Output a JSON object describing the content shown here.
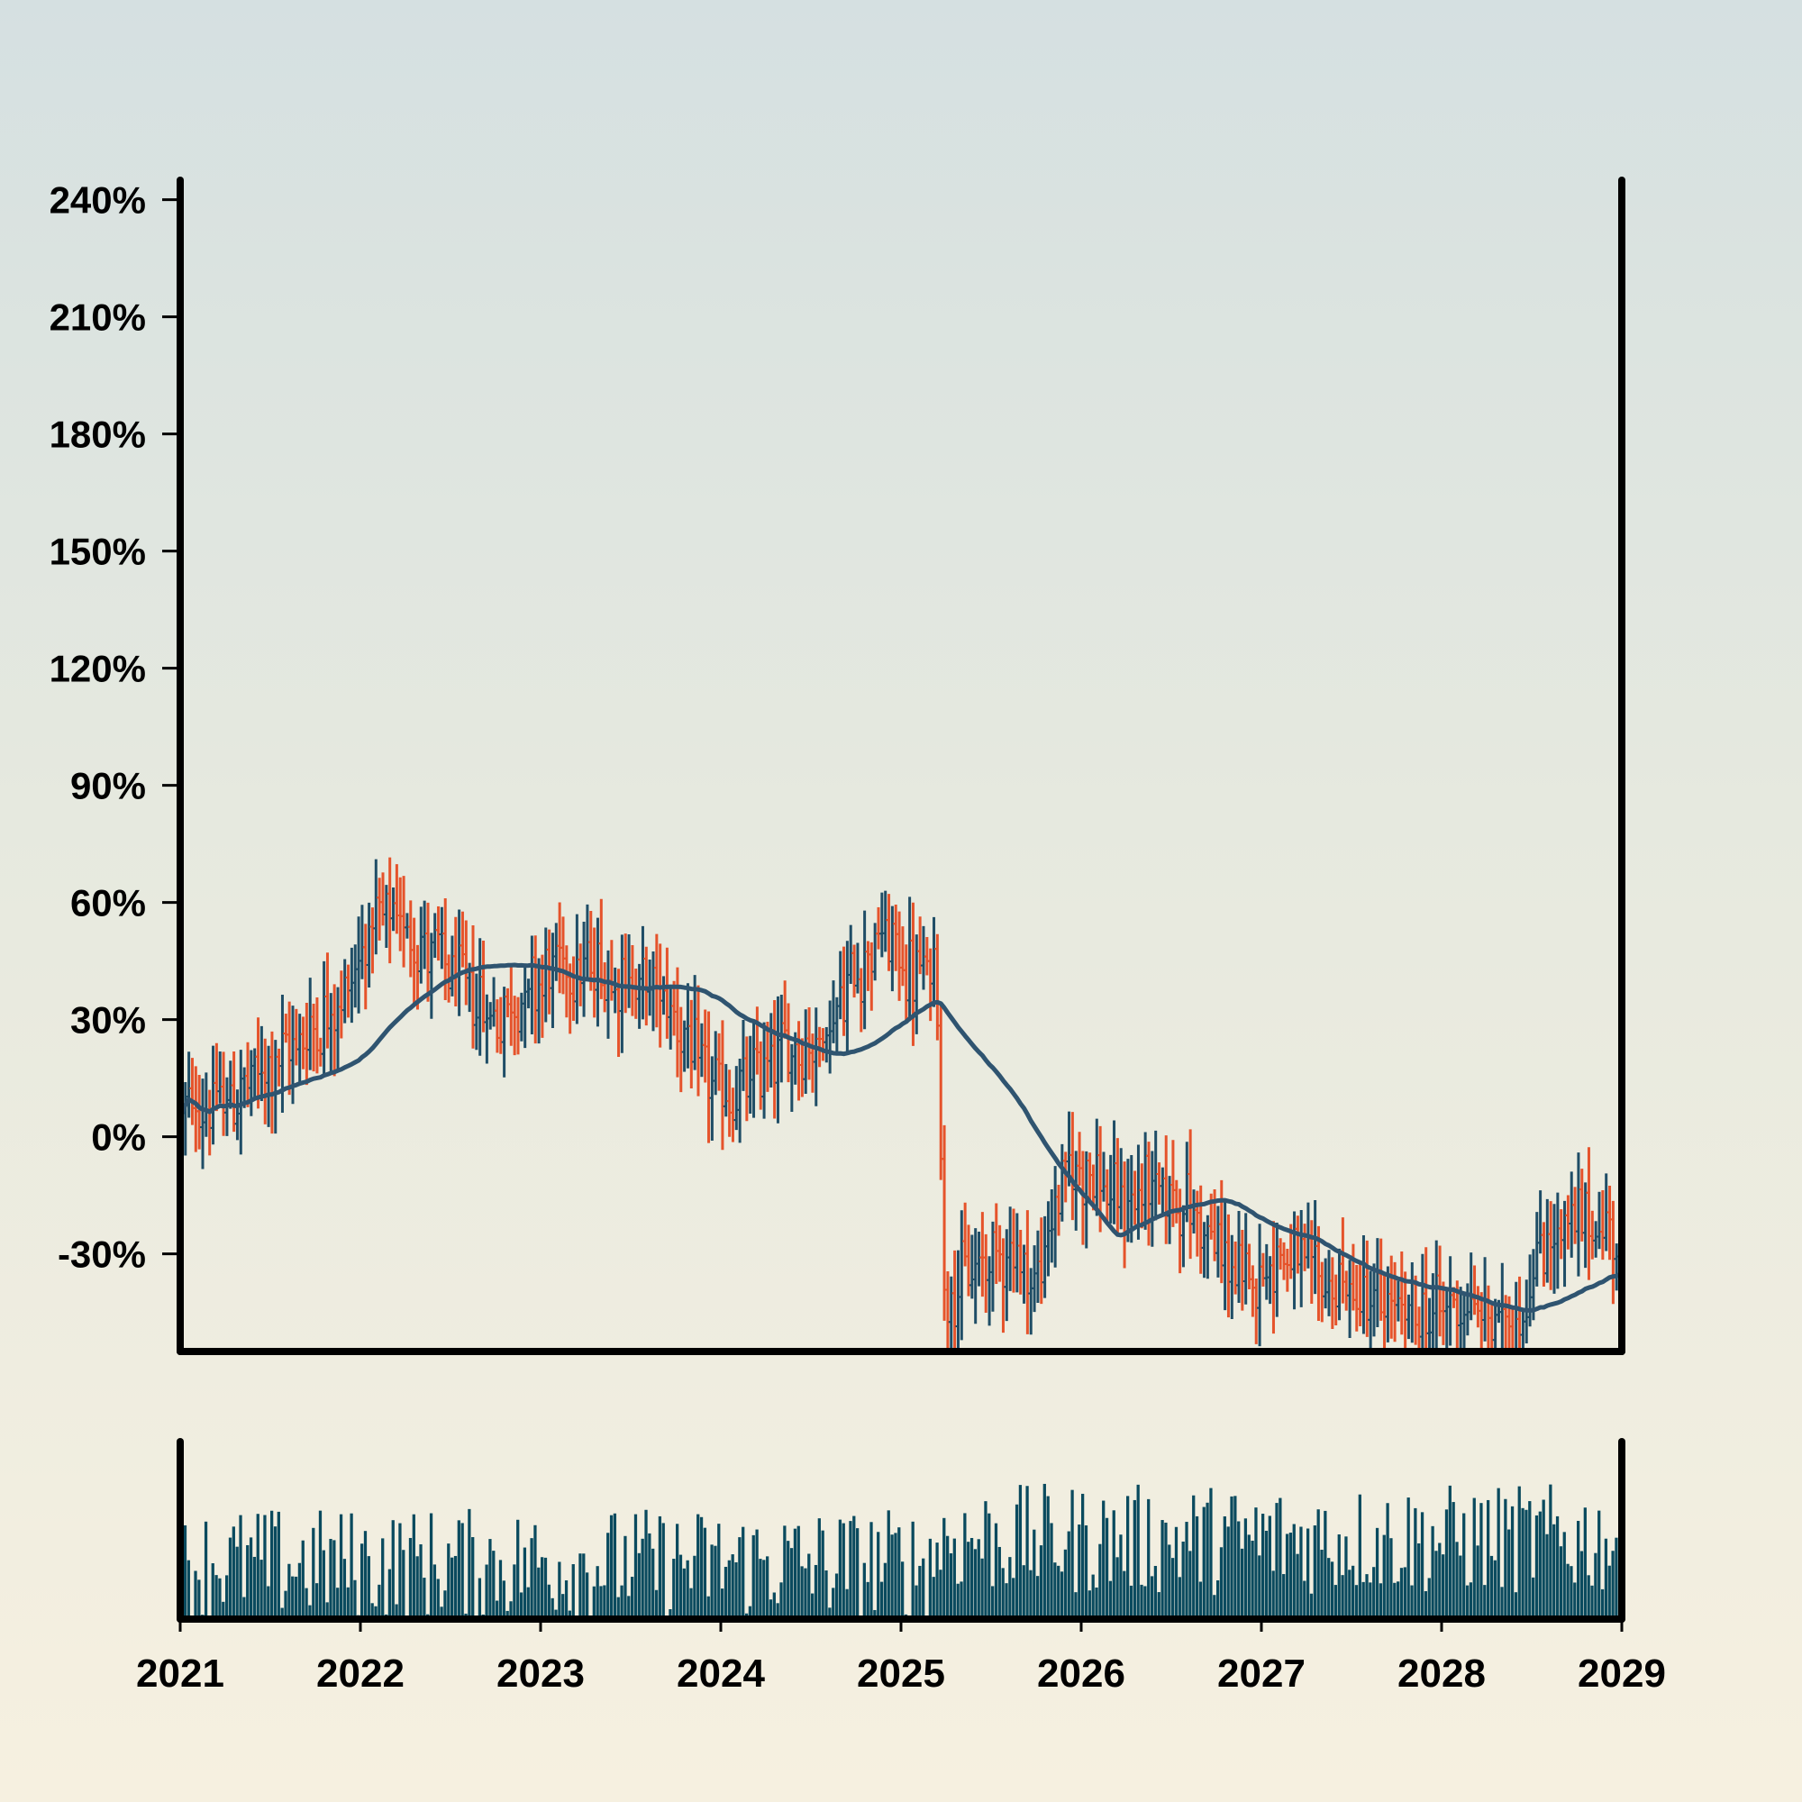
{
  "chart_data": {
    "type": "ohlc",
    "x_ticks": [
      "2021",
      "2022",
      "2023",
      "2024",
      "2025",
      "2026",
      "2027",
      "2028",
      "2029"
    ],
    "y_ticks": [
      "240%",
      "210%",
      "180%",
      "150%",
      "120%",
      "90%",
      "60%",
      "30%",
      "0%",
      "-30%"
    ],
    "ylim": [
      -55,
      245
    ],
    "xlim": [
      2021.0,
      2029.0
    ],
    "overlay": {
      "type": "moving-average",
      "color": "#2f5470"
    },
    "colors": {
      "up": "#1f4d66",
      "down": "#e5532b",
      "volume": "#0a4a5e",
      "axes": "#000000"
    },
    "anchors": [
      {
        "x": 2021.0,
        "y": 6
      },
      {
        "x": 2021.3,
        "y": 10
      },
      {
        "x": 2021.6,
        "y": 22
      },
      {
        "x": 2021.9,
        "y": 35
      },
      {
        "x": 2022.05,
        "y": 53
      },
      {
        "x": 2022.2,
        "y": 56
      },
      {
        "x": 2022.4,
        "y": 47
      },
      {
        "x": 2022.6,
        "y": 38
      },
      {
        "x": 2022.75,
        "y": 30
      },
      {
        "x": 2022.9,
        "y": 36
      },
      {
        "x": 2023.1,
        "y": 44
      },
      {
        "x": 2023.3,
        "y": 43
      },
      {
        "x": 2023.5,
        "y": 40
      },
      {
        "x": 2023.7,
        "y": 36
      },
      {
        "x": 2023.85,
        "y": 20
      },
      {
        "x": 2024.05,
        "y": 8
      },
      {
        "x": 2024.3,
        "y": 22
      },
      {
        "x": 2024.55,
        "y": 24
      },
      {
        "x": 2024.75,
        "y": 43
      },
      {
        "x": 2024.9,
        "y": 52
      },
      {
        "x": 2025.05,
        "y": 42
      },
      {
        "x": 2025.2,
        "y": 42
      },
      {
        "x": 2025.24,
        "y": -40
      },
      {
        "x": 2025.4,
        "y": -35
      },
      {
        "x": 2025.6,
        "y": -28
      },
      {
        "x": 2025.75,
        "y": -38
      },
      {
        "x": 2025.9,
        "y": -10
      },
      {
        "x": 2026.05,
        "y": -8
      },
      {
        "x": 2026.2,
        "y": -18
      },
      {
        "x": 2026.4,
        "y": -12
      },
      {
        "x": 2026.6,
        "y": -18
      },
      {
        "x": 2026.75,
        "y": -28
      },
      {
        "x": 2026.9,
        "y": -38
      },
      {
        "x": 2027.1,
        "y": -30
      },
      {
        "x": 2027.3,
        "y": -36
      },
      {
        "x": 2027.5,
        "y": -40
      },
      {
        "x": 2027.7,
        "y": -44
      },
      {
        "x": 2027.9,
        "y": -46
      },
      {
        "x": 2028.1,
        "y": -42
      },
      {
        "x": 2028.3,
        "y": -48
      },
      {
        "x": 2028.45,
        "y": -45
      },
      {
        "x": 2028.55,
        "y": -28
      },
      {
        "x": 2028.75,
        "y": -22
      },
      {
        "x": 2029.0,
        "y": -24
      }
    ]
  }
}
